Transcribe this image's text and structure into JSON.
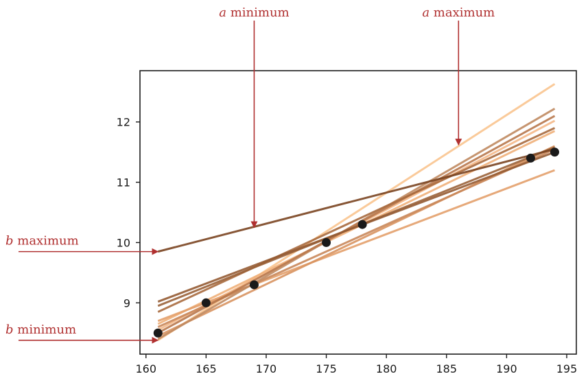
{
  "colors": {
    "annotation": "#b03030",
    "axis": "#1a1a1a",
    "points": "#1a1a1a",
    "line_palette": [
      "#f9c48f",
      "#f0b07a",
      "#e3a06c",
      "#d89460",
      "#c9875a",
      "#b8784c",
      "#a86a3e",
      "#955b33",
      "#7a4420"
    ]
  },
  "annotations": [
    {
      "var": "a",
      "text": "minimum",
      "arrow": "down",
      "target_x": 169,
      "target_y": 10.25
    },
    {
      "var": "a",
      "text": "maximum",
      "arrow": "down",
      "target_x": 186,
      "target_y": 11.62
    },
    {
      "var": "b",
      "text": "maximum",
      "arrow": "right",
      "target_x": 161,
      "target_y": 9.85
    },
    {
      "var": "b",
      "text": "minimum",
      "arrow": "right",
      "target_x": 161,
      "target_y": 8.38
    }
  ],
  "chart_data": {
    "type": "scatter",
    "title": "",
    "xlabel": "",
    "ylabel": "",
    "xlim": [
      159.5,
      195.8
    ],
    "ylim": [
      8.15,
      12.85
    ],
    "xticks": [
      160,
      165,
      170,
      175,
      180,
      185,
      190,
      195
    ],
    "yticks": [
      9,
      10,
      11,
      12
    ],
    "points": {
      "x": [
        161,
        165,
        169,
        175,
        178,
        192,
        194
      ],
      "y": [
        8.5,
        9.0,
        9.3,
        10.0,
        10.3,
        11.4,
        11.5
      ]
    },
    "fit_lines": [
      {
        "x": [
          161,
          194
        ],
        "y": [
          8.38,
          12.63
        ],
        "color": "#f9c48f"
      },
      {
        "x": [
          161,
          194
        ],
        "y": [
          8.65,
          11.85
        ],
        "color": "#f0b07a"
      },
      {
        "x": [
          161,
          194
        ],
        "y": [
          8.55,
          12.02
        ],
        "color": "#f4b888"
      },
      {
        "x": [
          161,
          194
        ],
        "y": [
          8.7,
          11.2
        ],
        "color": "#e3a06c"
      },
      {
        "x": [
          161,
          194
        ],
        "y": [
          8.45,
          11.6
        ],
        "color": "#d89460"
      },
      {
        "x": [
          161,
          194
        ],
        "y": [
          8.6,
          11.55
        ],
        "color": "#c9875a"
      },
      {
        "x": [
          161,
          194
        ],
        "y": [
          8.4,
          12.22
        ],
        "color": "#c08a60"
      },
      {
        "x": [
          161,
          194
        ],
        "y": [
          8.5,
          12.1
        ],
        "color": "#b8784c"
      },
      {
        "x": [
          161,
          194
        ],
        "y": [
          8.85,
          11.9
        ],
        "color": "#a86a3e"
      },
      {
        "x": [
          161,
          194
        ],
        "y": [
          8.95,
          11.58
        ],
        "color": "#9a6238"
      },
      {
        "x": [
          161,
          194
        ],
        "y": [
          9.02,
          11.5
        ],
        "color": "#955b33"
      },
      {
        "x": [
          161,
          194
        ],
        "y": [
          9.85,
          11.55
        ],
        "color": "#7a4420"
      }
    ]
  }
}
